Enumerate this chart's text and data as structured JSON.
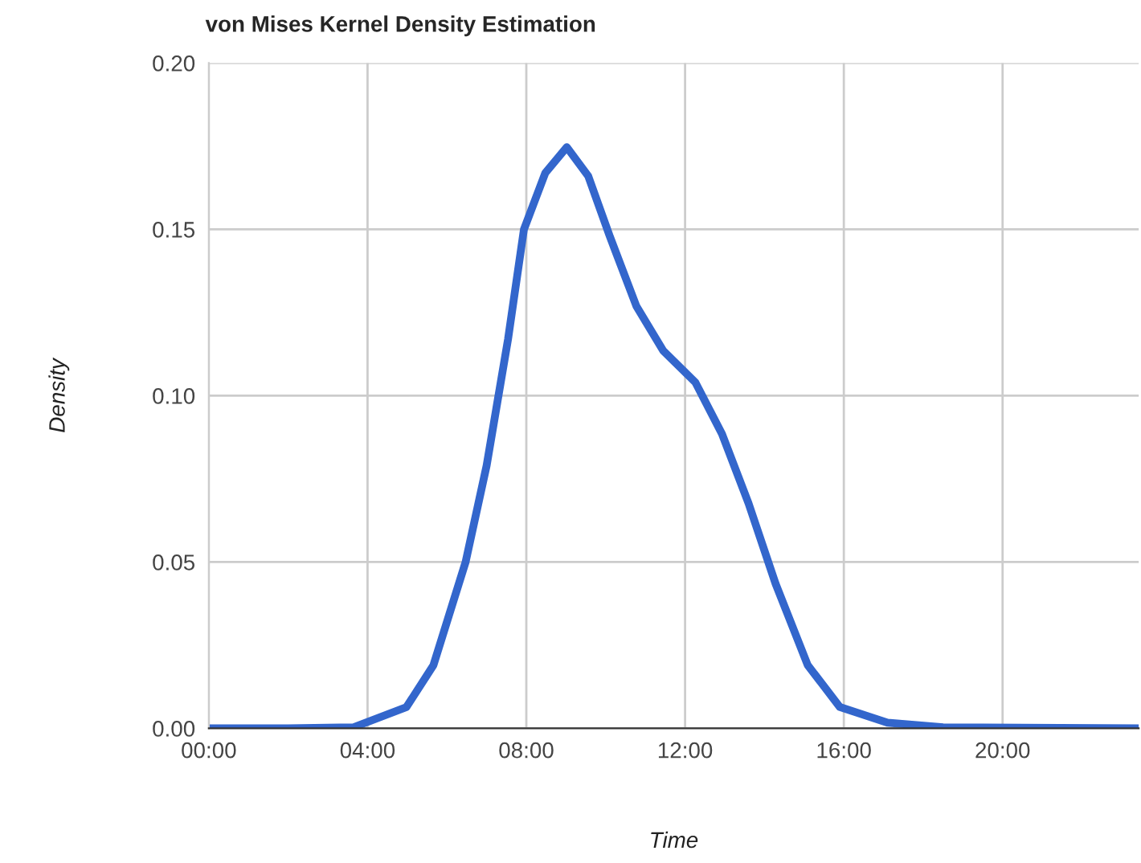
{
  "chart_data": {
    "type": "line",
    "title": "von Mises Kernel Density Estimation",
    "xlabel": "Time",
    "ylabel": "Density",
    "series": [
      {
        "color": "#3366cc",
        "x": [
          0,
          2,
          3.64,
          4.98,
          5.66,
          6.47,
          7.0,
          7.54,
          7.94,
          8.48,
          9.02,
          9.56,
          10.1,
          10.77,
          11.45,
          12.26,
          12.93,
          13.6,
          14.28,
          15.09,
          15.9,
          17.1,
          18.5,
          23.43
        ],
        "values": [
          0,
          0,
          0.0003,
          0.0064,
          0.019,
          0.05,
          0.079,
          0.117,
          0.15,
          0.167,
          0.1747,
          0.166,
          0.148,
          0.127,
          0.1135,
          0.104,
          0.0885,
          0.0676,
          0.0435,
          0.019,
          0.0064,
          0.0017,
          0.0003,
          0
        ]
      }
    ],
    "xlim": [
      0,
      23.43
    ],
    "xticks": [
      {
        "value": 0,
        "label": "00:00"
      },
      {
        "value": 4,
        "label": "04:00"
      },
      {
        "value": 8,
        "label": "08:00"
      },
      {
        "value": 12,
        "label": "12:00"
      },
      {
        "value": 16,
        "label": "16:00"
      },
      {
        "value": 20,
        "label": "20:00"
      }
    ],
    "ylim": [
      0,
      0.2
    ],
    "yticks": [
      {
        "value": 0,
        "label": "0.00"
      },
      {
        "value": 0.05,
        "label": "0.05"
      },
      {
        "value": 0.1,
        "label": "0.10"
      },
      {
        "value": 0.15,
        "label": "0.15"
      },
      {
        "value": 0.2,
        "label": "0.20"
      }
    ],
    "grid": true,
    "legend": false,
    "marker": "none",
    "line_style": "solid"
  }
}
